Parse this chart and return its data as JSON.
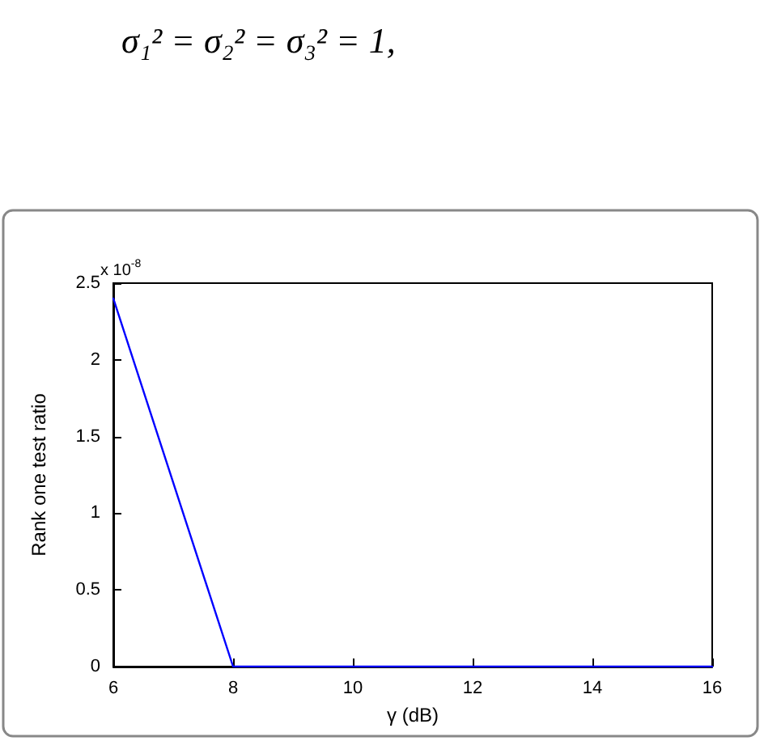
{
  "chart_data": {
    "type": "line",
    "xlabel": "γ (dB)",
    "ylabel": "Rank one test ratio",
    "annotations": [
      "σ₁² = σ₂² = σ₃² = 1,",
      "x 10$^{-8}$"
    ],
    "x": [
      6,
      8,
      10,
      12,
      14,
      16
    ],
    "series": [
      {
        "color": "#0000ff",
        "values": [
          2.4,
          0,
          0,
          0,
          0,
          0
        ]
      }
    ],
    "xlim": [
      6,
      16
    ],
    "xticks": [
      6,
      8,
      10,
      12,
      14,
      16
    ],
    "ylim": [
      0,
      2.5
    ],
    "yticks": [
      0,
      0.5,
      1,
      1.5,
      2,
      2.5
    ],
    "grid": false,
    "marker": "none",
    "line_style": "solid"
  }
}
